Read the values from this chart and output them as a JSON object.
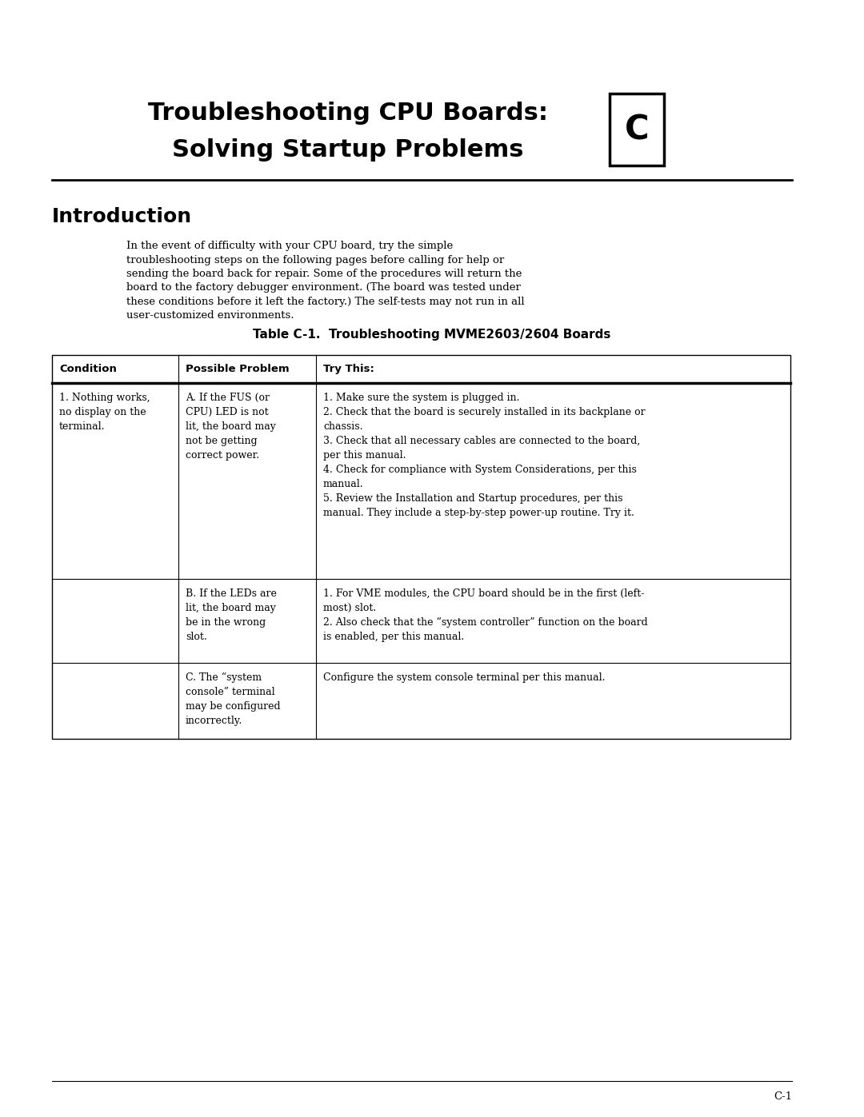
{
  "page_width": 10.8,
  "page_height": 13.97,
  "bg_color": "#ffffff",
  "title_line1": "Troubleshooting CPU Boards:",
  "title_line2": "Solving Startup Problems",
  "chapter_letter": "C",
  "section_title": "Introduction",
  "intro_para": "In the event of difficulty with your CPU board, try the simple\ntroubleshooting steps on the following pages before calling for help or\nsending the board back for repair. Some of the procedures will return the\nboard to the factory debugger environment. (The board was tested under\nthese conditions before it left the factory.) The self-tests may not run in all\nuser-customized environments.",
  "table_title": "Table C-1.  Troubleshooting MVME2603/2604 Boards",
  "col_headers": [
    "Condition",
    "Possible Problem",
    "Try This:"
  ],
  "row0_cond": "1. Nothing works,\nno display on the\nterminal.",
  "row0_prob": "A. If the FUS (or\nCPU) LED is not\nlit, the board may\nnot be getting\ncorrect power.",
  "row0_try": "1. Make sure the system is plugged in.\n2. Check that the board is securely installed in its backplane or\nchassis.\n3. Check that all necessary cables are connected to the board,\nper this manual.\n4. Check for compliance with System Considerations, per this\nmanual.\n5. Review the Installation and Startup procedures, per this\nmanual. They include a step-by-step power-up routine. Try it.",
  "row1_prob": "B. If the LEDs are\nlit, the board may\nbe in the wrong\nslot.",
  "row1_try": "1. For VME modules, the CPU board should be in the first (left-\nmost) slot.\n2. Also check that the “system controller” function on the board\nis enabled, per this manual.",
  "row2_prob": "C. The “system\nconsole” terminal\nmay be configured\nincorrectly.",
  "row2_try": "Configure the system console terminal per this manual.",
  "footer_text": "C-1",
  "font_color": "#000000",
  "title_fontsize": 22,
  "header_fontsize": 9.5,
  "body_fontsize": 9.0,
  "intro_fontsize": 9.5,
  "section_fontsize": 18,
  "table_title_fontsize": 11
}
